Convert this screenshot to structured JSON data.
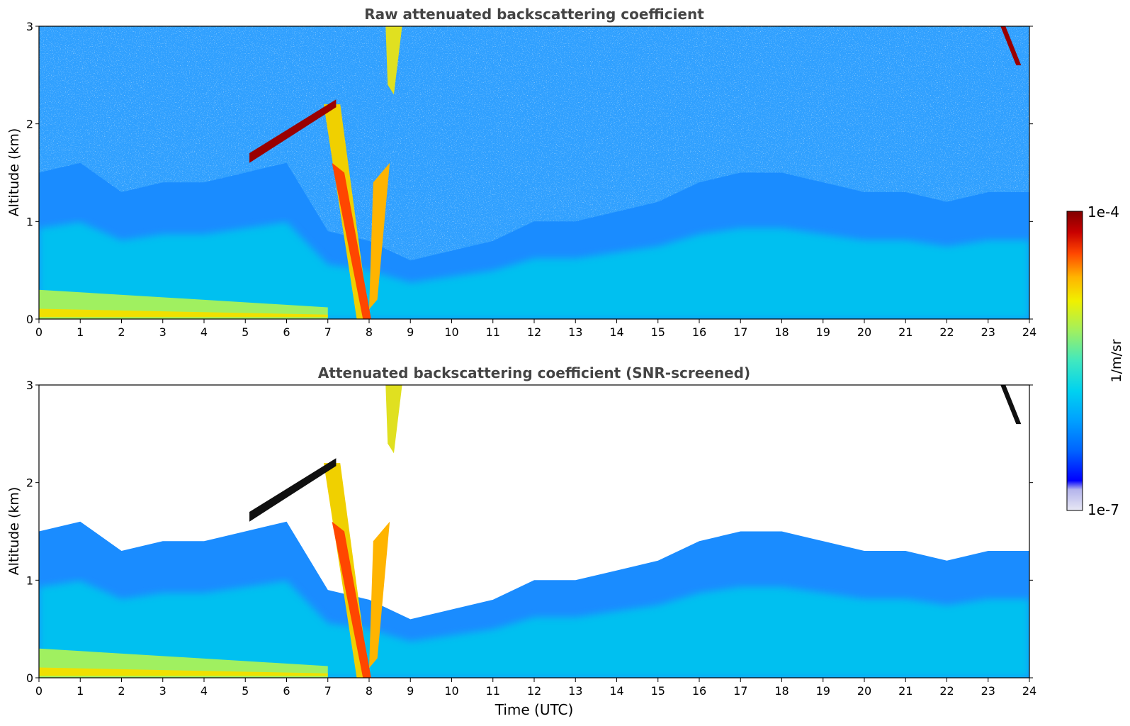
{
  "colors": {
    "title_text": "#444444",
    "axis": "#000000",
    "colormap": [
      "#e8e8f4",
      "#b4b4ec",
      "#0000ff",
      "#0064ff",
      "#00a0ff",
      "#00d2f0",
      "#40e8c0",
      "#a0f060",
      "#f0f000",
      "#ffb400",
      "#ff4600",
      "#c80000",
      "#800000"
    ]
  },
  "chart_data": [
    {
      "type": "heatmap",
      "title": "Raw attenuated backscattering coefficient",
      "xlabel": "",
      "ylabel": "Altitude (km)",
      "xlim": [
        0,
        24
      ],
      "ylim": [
        0,
        3
      ],
      "x_ticks": [
        "0",
        "1",
        "2",
        "3",
        "4",
        "5",
        "6",
        "7",
        "8",
        "9",
        "10",
        "11",
        "12",
        "13",
        "14",
        "15",
        "16",
        "17",
        "18",
        "19",
        "20",
        "21",
        "22",
        "23",
        "24"
      ],
      "y_ticks": [
        "0",
        "1",
        "2",
        "3"
      ],
      "screened": false,
      "value_scale": "log",
      "value_range": [
        1e-07,
        0.0001
      ],
      "features": [
        {
          "kind": "surface_aerosol_layer",
          "time": [
            0,
            7
          ],
          "top_altitude_km": 0.3
        },
        {
          "kind": "boundary_layer",
          "time": [
            0,
            24
          ],
          "top_altitude_km": [
            1.5,
            1.6,
            1.3,
            1.4,
            1.4,
            1.5,
            1.6,
            0.9,
            0.8,
            0.6,
            0.7,
            0.8,
            1.0,
            1.0,
            1.1,
            1.2,
            1.4,
            1.5,
            1.5,
            1.4,
            1.3,
            1.3,
            1.2,
            1.3,
            1.3
          ]
        },
        {
          "kind": "elevated_cloud_layer",
          "time": [
            5.1,
            7.2
          ],
          "altitude_km": [
            1.7,
            2.25
          ]
        },
        {
          "kind": "precipitation_plume",
          "time": [
            6.9,
            8.6
          ],
          "altitude_km": [
            0,
            2.2
          ]
        },
        {
          "kind": "high_cloud",
          "time": [
            23.3,
            23.8
          ],
          "altitude_km": [
            2.6,
            3.0
          ]
        }
      ]
    },
    {
      "type": "heatmap",
      "title": "Attenuated backscattering coefficient (SNR-screened)",
      "xlabel": "Time (UTC)",
      "ylabel": "Altitude (km)",
      "xlim": [
        0,
        24
      ],
      "ylim": [
        0,
        3
      ],
      "x_ticks": [
        "0",
        "1",
        "2",
        "3",
        "4",
        "5",
        "6",
        "7",
        "8",
        "9",
        "10",
        "11",
        "12",
        "13",
        "14",
        "15",
        "16",
        "17",
        "18",
        "19",
        "20",
        "21",
        "22",
        "23",
        "24"
      ],
      "y_ticks": [
        "0",
        "1",
        "2",
        "3"
      ],
      "screened": true,
      "value_scale": "log",
      "value_range": [
        1e-07,
        0.0001
      ]
    }
  ],
  "colorbar": {
    "label": "1/m/sr",
    "max_label": "1e-4",
    "min_label": "1e-7"
  }
}
